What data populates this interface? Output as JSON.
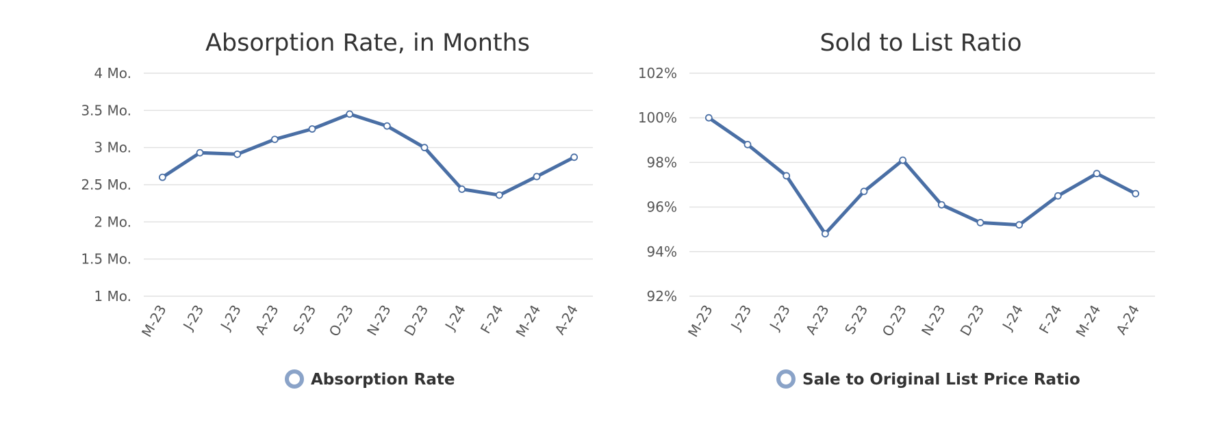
{
  "colors": {
    "series": "#4a6fa5",
    "legend_marker": "#8aa3c8",
    "grid": "#e1e1e1",
    "text": "#333333"
  },
  "chart_data": [
    {
      "type": "line",
      "title": "Absorption Rate, in Months",
      "categories": [
        "M-23",
        "J-23",
        "J-23",
        "A-23",
        "S-23",
        "O-23",
        "N-23",
        "D-23",
        "J-24",
        "F-24",
        "M-24",
        "A-24"
      ],
      "y_tick_labels": [
        "4 Mo.",
        "3.5 Mo.",
        "3 Mo.",
        "2.5 Mo.",
        "2 Mo.",
        "1.5 Mo.",
        "1 Mo."
      ],
      "y_ticks": [
        4,
        3.5,
        3,
        2.5,
        2,
        1.5,
        1
      ],
      "ylim": [
        1,
        4
      ],
      "grid": true,
      "legend_position": "bottom-center",
      "series": [
        {
          "name": "Absorption Rate",
          "values": [
            2.6,
            2.93,
            2.91,
            3.11,
            3.25,
            3.45,
            3.29,
            3.0,
            2.44,
            2.36,
            2.61,
            2.87
          ]
        }
      ]
    },
    {
      "type": "line",
      "title": "Sold to List Ratio",
      "categories": [
        "M-23",
        "J-23",
        "J-23",
        "A-23",
        "S-23",
        "O-23",
        "N-23",
        "D-23",
        "J-24",
        "F-24",
        "M-24",
        "A-24"
      ],
      "y_tick_labels": [
        "102%",
        "100%",
        "98%",
        "96%",
        "94%",
        "92%"
      ],
      "y_ticks": [
        102,
        100,
        98,
        96,
        94,
        92
      ],
      "ylim": [
        92,
        102
      ],
      "grid": true,
      "legend_position": "bottom-center",
      "series": [
        {
          "name": "Sale to Original List Price Ratio",
          "values": [
            100.0,
            98.8,
            97.4,
            94.8,
            96.7,
            98.1,
            96.1,
            95.3,
            95.2,
            96.5,
            97.5,
            96.6
          ]
        }
      ]
    }
  ]
}
